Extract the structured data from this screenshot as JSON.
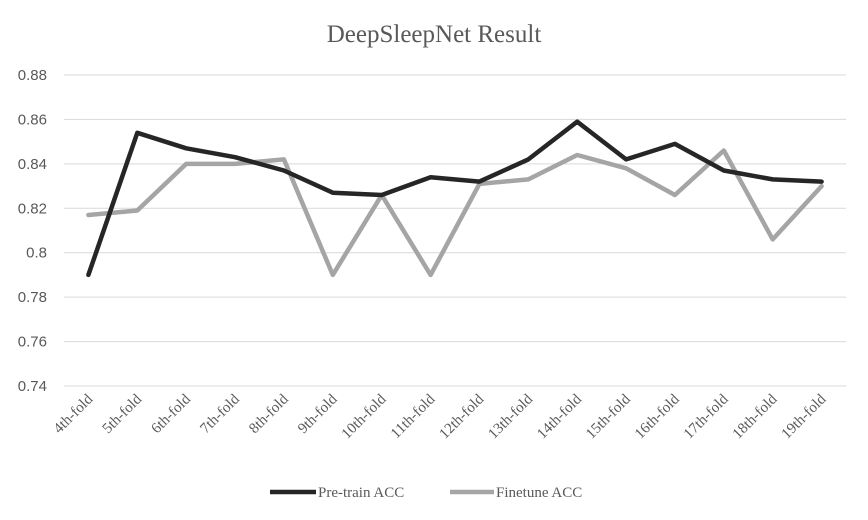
{
  "chart_data": {
    "type": "line",
    "title": "DeepSleepNet Result",
    "xlabel": "",
    "ylabel": "",
    "categories": [
      "4th-fold",
      "5th-fold",
      "6th-fold",
      "7th-fold",
      "8th-fold",
      "9th-fold",
      "10th-fold",
      "11th-fold",
      "12th-fold",
      "13th-fold",
      "14th-fold",
      "15th-fold",
      "16th-fold",
      "17th-fold",
      "18th-fold",
      "19th-fold"
    ],
    "ylim": [
      0.74,
      0.88
    ],
    "yticks": [
      "0.74",
      "0.76",
      "0.78",
      "0.8",
      "0.82",
      "0.84",
      "0.86",
      "0.88"
    ],
    "grid": true,
    "legend_position": "bottom",
    "series": [
      {
        "name": "Pre-train ACC",
        "color": "#262626",
        "values": [
          0.79,
          0.854,
          0.847,
          0.843,
          0.837,
          0.827,
          0.826,
          0.834,
          0.832,
          0.842,
          0.859,
          0.842,
          0.849,
          0.837,
          0.833,
          0.832
        ]
      },
      {
        "name": "Finetune ACC",
        "color": "#a5a5a5",
        "values": [
          0.817,
          0.819,
          0.84,
          0.84,
          0.842,
          0.79,
          0.826,
          0.79,
          0.831,
          0.833,
          0.844,
          0.838,
          0.826,
          0.846,
          0.806,
          0.83
        ]
      }
    ]
  }
}
